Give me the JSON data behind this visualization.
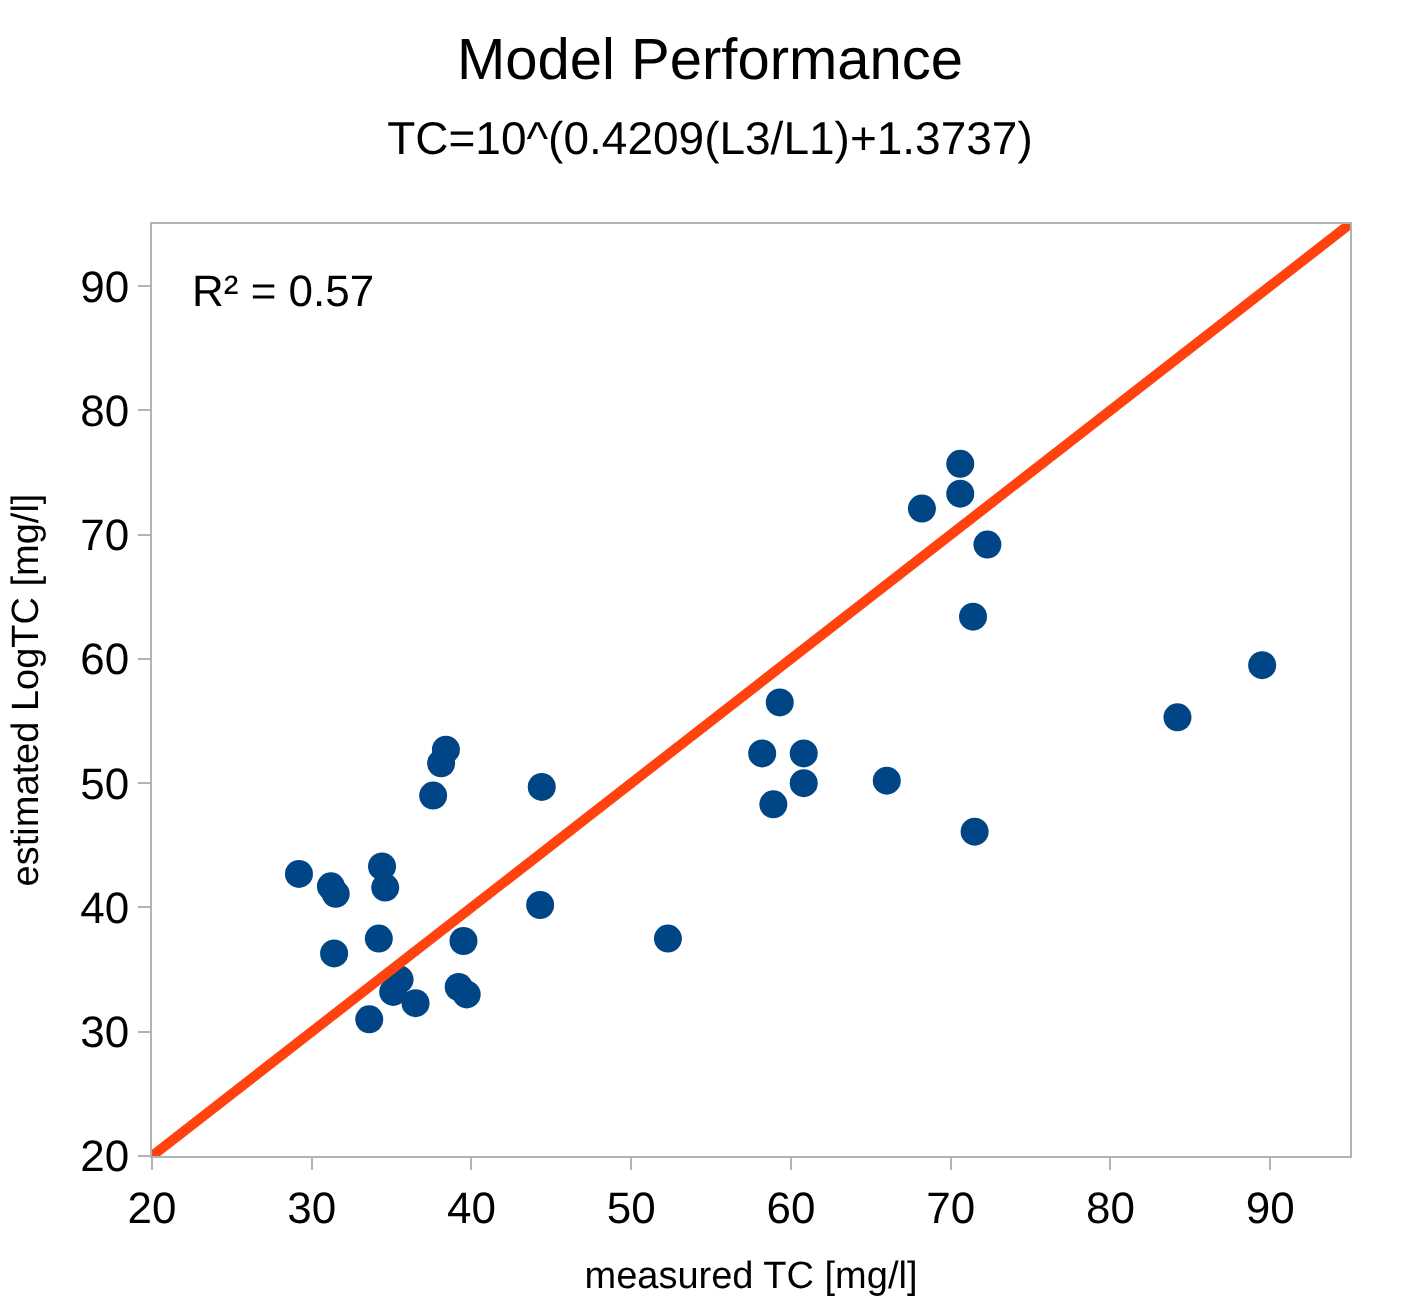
{
  "chart_data": {
    "type": "scatter",
    "title": "Model Performance",
    "subtitle": "TC=10^(0.4209(L3/L1)+1.3737)",
    "xlabel": "measured TC [mg/l]",
    "ylabel": "estimated LogTC [mg/l]",
    "annotations": [
      "R² = 0.57"
    ],
    "series": [
      {
        "color": "#004586",
        "x": [
          29.2,
          31.2,
          31.5,
          31.4,
          34.4,
          34.6,
          34.2,
          35.5,
          35.1,
          36.5,
          33.6,
          38.4,
          38.1,
          37.6,
          39.5,
          39.2,
          39.7,
          44.4,
          44.3,
          52.3,
          58.2,
          59.3,
          58.9,
          60.8,
          60.8,
          66.0,
          71.5,
          68.2,
          70.6,
          70.6,
          72.3,
          71.4,
          84.2,
          89.5
        ],
        "values": [
          42.7,
          41.7,
          41.1,
          36.3,
          43.3,
          41.6,
          37.5,
          34.2,
          33.2,
          32.3,
          31.0,
          52.7,
          51.6,
          49.0,
          37.3,
          33.6,
          33.0,
          49.7,
          40.2,
          37.5,
          52.4,
          56.5,
          48.3,
          52.4,
          50.0,
          50.2,
          46.1,
          72.1,
          75.7,
          73.3,
          69.2,
          63.4,
          55.3,
          59.5
        ]
      },
      {
        "type": "line",
        "marker": "none",
        "color": "#ff420e",
        "x": [
          20,
          95
        ],
        "values": [
          20,
          95
        ]
      }
    ],
    "xlim": [
      20,
      95
    ],
    "ylim": [
      20,
      95
    ],
    "xticks": [
      20,
      30,
      40,
      50,
      60,
      70,
      80,
      90
    ],
    "yticks": [
      20,
      30,
      40,
      50,
      60,
      70,
      80,
      90
    ],
    "grid": false,
    "legend": false,
    "marker": "circle"
  }
}
